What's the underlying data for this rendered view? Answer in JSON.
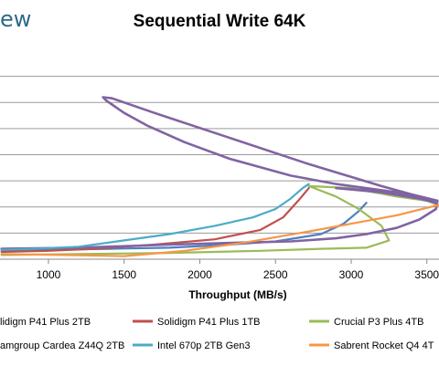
{
  "logo": {
    "text": "ew"
  },
  "chart_data": {
    "type": "line",
    "title": "Sequential Write 64K",
    "xlabel": "Throughput (MB/s)",
    "ylabel": "",
    "xlim": [
      680,
      3580
    ],
    "ylim": [
      0,
      10
    ],
    "x_ticks": [
      1000,
      1500,
      2000,
      2500,
      3000,
      3500
    ],
    "grid": "horizontal",
    "legend_position": "bottom",
    "series": [
      {
        "name": "lidigm P41 Plus 2TB",
        "color": "#4f7fbf",
        "width": 2.2,
        "points": [
          [
            690,
            0.4
          ],
          [
            1000,
            0.45
          ],
          [
            1400,
            0.5
          ],
          [
            1800,
            0.55
          ],
          [
            2200,
            0.7
          ],
          [
            2500,
            0.85
          ],
          [
            2800,
            1.2
          ],
          [
            2950,
            1.7
          ],
          [
            3050,
            2.3
          ],
          [
            3100,
            2.7
          ]
        ]
      },
      {
        "name": "Solidigm P41 Plus 1TB",
        "color": "#c0504d",
        "width": 2.2,
        "points": [
          [
            690,
            0.35
          ],
          [
            1000,
            0.4
          ],
          [
            1300,
            0.5
          ],
          [
            1700,
            0.7
          ],
          [
            2100,
            0.95
          ],
          [
            2400,
            1.4
          ],
          [
            2550,
            2.0
          ],
          [
            2650,
            2.8
          ],
          [
            2720,
            3.4
          ]
        ]
      },
      {
        "name": "Crucial P3 Plus 4TB",
        "color": "#9bbb59",
        "width": 2.2,
        "points": [
          [
            690,
            0.2
          ],
          [
            1200,
            0.25
          ],
          [
            1800,
            0.3
          ],
          [
            2400,
            0.4
          ],
          [
            2800,
            0.5
          ],
          [
            3100,
            0.55
          ],
          [
            3250,
            0.9
          ],
          [
            3200,
            1.6
          ],
          [
            3050,
            2.4
          ],
          [
            2900,
            3.0
          ],
          [
            2720,
            3.5
          ],
          [
            3000,
            3.4
          ],
          [
            3300,
            3.0
          ],
          [
            3500,
            2.8
          ],
          [
            3570,
            2.6
          ]
        ]
      },
      {
        "name": "amgroup Cardea Z44Q 2TB",
        "color": "#8064a2",
        "width": 2.6,
        "points": [
          [
            690,
            0.5
          ],
          [
            1200,
            0.55
          ],
          [
            1800,
            0.7
          ],
          [
            2300,
            0.8
          ],
          [
            2600,
            0.85
          ],
          [
            2900,
            1.0
          ],
          [
            3100,
            1.2
          ],
          [
            3300,
            1.5
          ],
          [
            3450,
            1.9
          ],
          [
            3560,
            2.4
          ],
          [
            3570,
            2.8
          ],
          [
            3400,
            3.1
          ],
          [
            3100,
            3.3
          ],
          [
            2900,
            3.4
          ],
          [
            3200,
            3.2
          ],
          [
            3450,
            2.9
          ],
          [
            3560,
            2.7
          ],
          [
            3300,
            3.2
          ],
          [
            2900,
            3.6
          ],
          [
            2600,
            4.0
          ],
          [
            2200,
            4.8
          ],
          [
            1900,
            5.6
          ],
          [
            1650,
            6.4
          ],
          [
            1500,
            7.0
          ],
          [
            1380,
            7.6
          ],
          [
            1360,
            7.75
          ],
          [
            1420,
            7.7
          ],
          [
            1700,
            7.0
          ],
          [
            2200,
            5.8
          ],
          [
            2700,
            4.6
          ],
          [
            3200,
            3.5
          ],
          [
            3400,
            3.1
          ],
          [
            3570,
            2.8
          ]
        ]
      },
      {
        "name": "Intel 670p 2TB Gen3",
        "color": "#4bacc6",
        "width": 2.2,
        "points": [
          [
            690,
            0.45
          ],
          [
            900,
            0.5
          ],
          [
            1200,
            0.6
          ],
          [
            1500,
            0.9
          ],
          [
            1800,
            1.2
          ],
          [
            2100,
            1.6
          ],
          [
            2350,
            2.0
          ],
          [
            2500,
            2.4
          ],
          [
            2600,
            2.9
          ],
          [
            2680,
            3.4
          ],
          [
            2720,
            3.6
          ]
        ]
      },
      {
        "name": "Sabrent Rocket Q4 4T",
        "color": "#f79646",
        "width": 2.2,
        "points": [
          [
            690,
            0.25
          ],
          [
            1100,
            0.2
          ],
          [
            1500,
            0.15
          ],
          [
            1900,
            0.4
          ],
          [
            2300,
            0.8
          ],
          [
            2700,
            1.3
          ],
          [
            3000,
            1.7
          ],
          [
            3300,
            2.1
          ],
          [
            3580,
            2.6
          ]
        ]
      }
    ]
  }
}
